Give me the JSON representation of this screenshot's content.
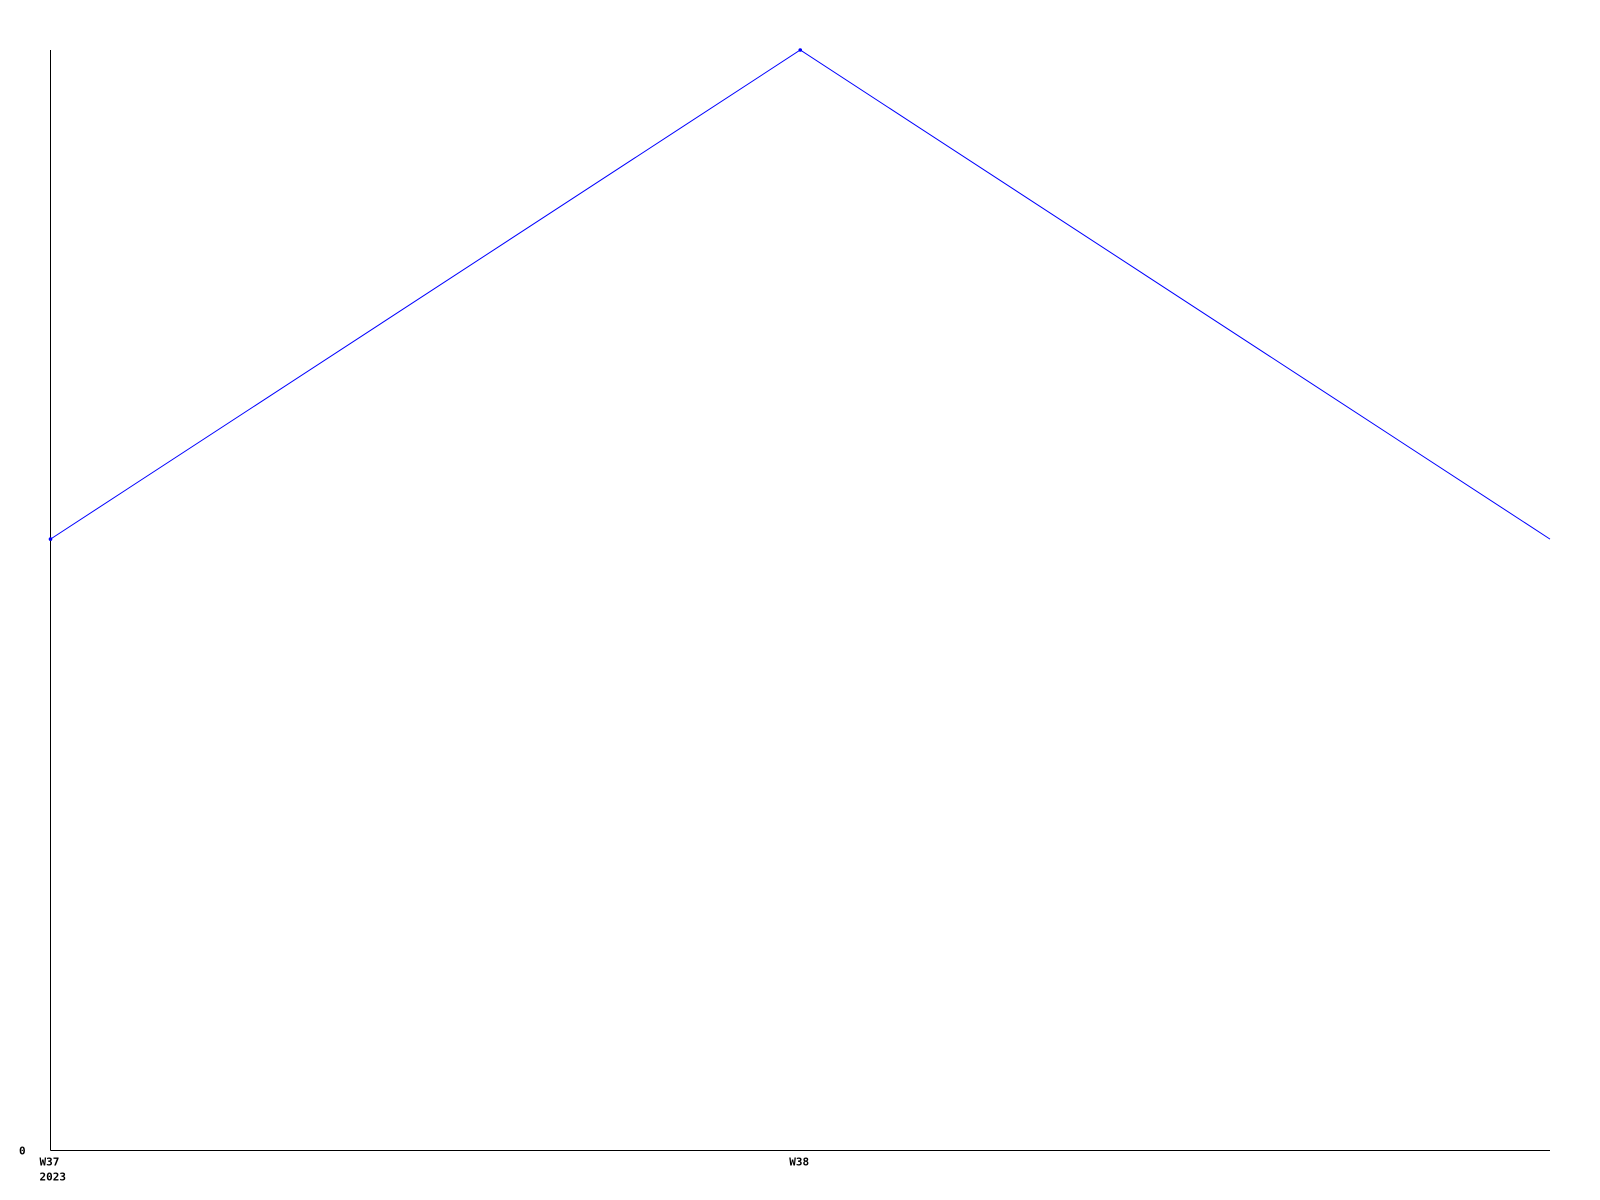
{
  "chart_data": {
    "type": "line",
    "title": "",
    "xlabel": "",
    "ylabel": "",
    "x": [
      37,
      38,
      39
    ],
    "x_tick_labels": [
      "W37",
      "W38"
    ],
    "x_year_label": "2023",
    "y_tick_labels": [
      "0"
    ],
    "series": [
      {
        "values": [
          5,
          9,
          5
        ],
        "color": "#0000ff"
      }
    ],
    "xlim": [
      37,
      39
    ],
    "ylim": [
      0,
      9
    ],
    "grid": false,
    "axis_color": "#000000"
  }
}
